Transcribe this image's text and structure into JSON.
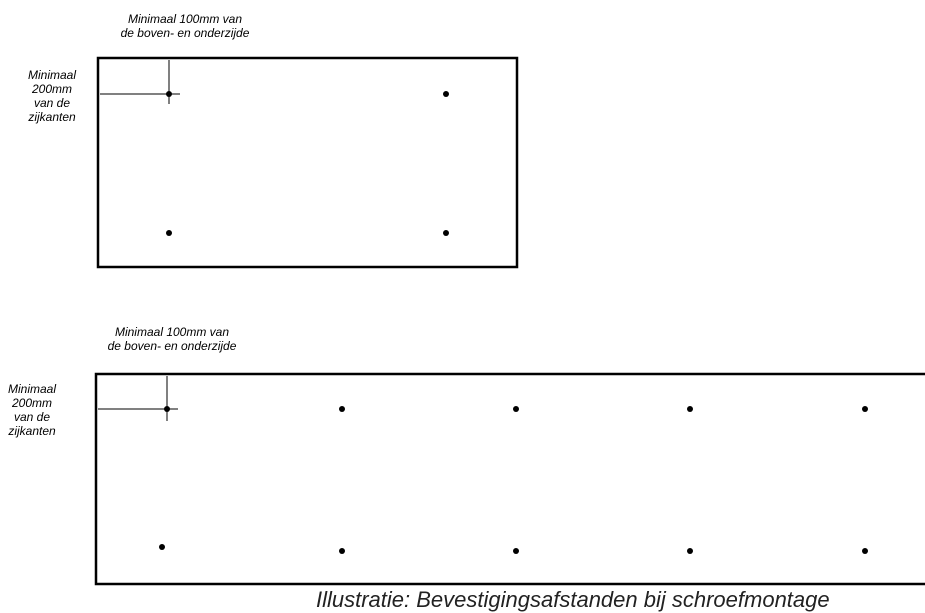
{
  "diagram1": {
    "top_label": [
      "Minimaal 100mm van",
      "de boven- en onderzijde"
    ],
    "side_label": [
      "Minimaal",
      "200mm",
      "van de",
      "zijkanten"
    ]
  },
  "diagram2": {
    "top_label": [
      "Minimaal 100mm van",
      "de boven- en onderzijde"
    ],
    "side_label": [
      "Minimaal",
      "200mm",
      "van de",
      "zijkanten"
    ]
  },
  "caption": "Illustratie: Bevestigingsafstanden bij schroefmontage"
}
